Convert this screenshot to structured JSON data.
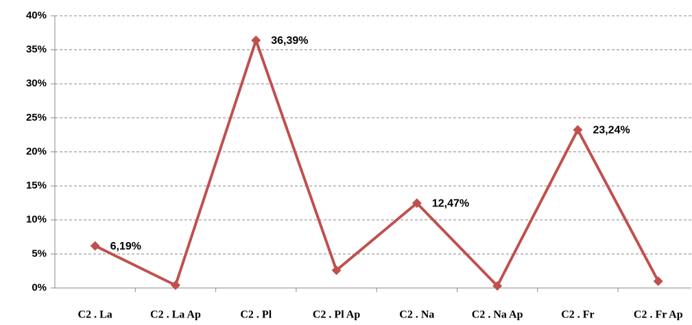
{
  "chart_data": {
    "type": "line",
    "categories": [
      "C2 . La",
      "C2 . La Ap",
      "C2 . Pl",
      "C2 . Pl Ap",
      "C2 . Na",
      "C2 . Na Ap",
      "C2 . Fr",
      "C2 . Fr Ap"
    ],
    "series": [
      {
        "name": null,
        "color": "#c0504d",
        "values": [
          6.19,
          0.4,
          36.39,
          2.6,
          12.47,
          0.3,
          23.24,
          1.0
        ],
        "value_labels": [
          "6,19%",
          null,
          "36,39%",
          null,
          "12,47%",
          null,
          "23,24%",
          null
        ]
      }
    ],
    "ylim": [
      0,
      40
    ],
    "yticks": [
      {
        "value": 0,
        "label": "0%"
      },
      {
        "value": 5,
        "label": "5%"
      },
      {
        "value": 10,
        "label": "10%"
      },
      {
        "value": 15,
        "label": "15%"
      },
      {
        "value": 20,
        "label": "20%"
      },
      {
        "value": 25,
        "label": "25%"
      },
      {
        "value": 30,
        "label": "30%"
      },
      {
        "value": 35,
        "label": "35%"
      },
      {
        "value": 40,
        "label": "40%"
      }
    ],
    "grid": true
  }
}
